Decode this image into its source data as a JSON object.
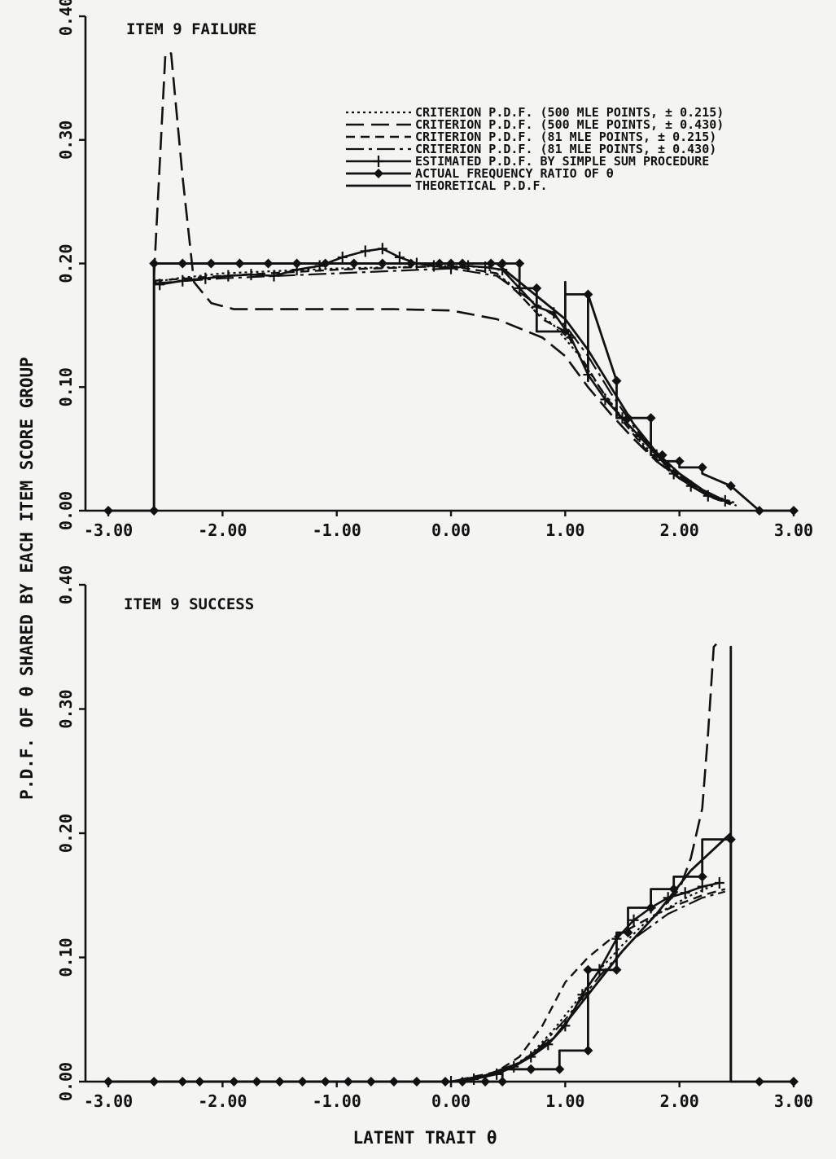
{
  "figure": {
    "ylabel": "P.D.F. OF θ SHARED BY EACH ITEM SCORE GROUP",
    "xlabel": "LATENT TRAIT θ"
  },
  "colors": {
    "ink": "#111111",
    "paper": "#f4f4f2"
  },
  "chart_data": [
    {
      "type": "line",
      "title": "ITEM 9 FAILURE",
      "xlim": [
        -3.2,
        3.0
      ],
      "ylim": [
        0.0,
        0.4
      ],
      "xticks": [
        -3.0,
        -2.0,
        -1.0,
        0.0,
        1.0,
        2.0,
        3.0
      ],
      "xticklabels": [
        "-3.00",
        "-2.00",
        "-1.00",
        "0.00",
        "1.00",
        "2.00",
        "3.00"
      ],
      "yticks": [
        0.0,
        0.1,
        0.2,
        0.3,
        0.4
      ],
      "yticklabels": [
        "0.00",
        "0.10",
        "0.20",
        "0.30",
        "0.40"
      ],
      "grid": false,
      "legend": "top-right",
      "series": [
        {
          "name": "CRITERION P.D.F. (500 MLE POINTS, ± 0.215)",
          "style": "dotted",
          "x": [
            -2.6,
            -2.4,
            -2.2,
            -2.0,
            -1.5,
            -1.0,
            -0.5,
            0.0,
            0.3,
            0.5,
            0.7,
            0.9,
            1.1,
            1.3,
            1.5,
            1.7,
            1.9,
            2.1,
            2.3,
            2.5
          ],
          "y": [
            0.185,
            0.188,
            0.19,
            0.192,
            0.194,
            0.196,
            0.197,
            0.198,
            0.197,
            0.185,
            0.165,
            0.15,
            0.128,
            0.1,
            0.075,
            0.052,
            0.035,
            0.022,
            0.012,
            0.006
          ]
        },
        {
          "name": "CRITERION P.D.F. (500 MLE POINTS, ± 0.430)",
          "style": "long-dash",
          "x": [
            -2.6,
            -2.5,
            -2.45,
            -2.35,
            -2.25,
            -2.1,
            -1.9,
            -1.5,
            -1.0,
            -0.5,
            0.0,
            0.4,
            0.8,
            1.0,
            1.2,
            1.4,
            1.6,
            1.8,
            2.0,
            2.2,
            2.4,
            2.5
          ],
          "y": [
            0.19,
            0.37,
            0.37,
            0.27,
            0.185,
            0.168,
            0.163,
            0.163,
            0.163,
            0.163,
            0.162,
            0.155,
            0.14,
            0.125,
            0.1,
            0.078,
            0.058,
            0.04,
            0.026,
            0.015,
            0.008,
            0.005
          ]
        },
        {
          "name": "CRITERION P.D.F. (81 MLE POINTS, ± 0.215)",
          "style": "dashed",
          "x": [
            -2.6,
            -2.0,
            -1.0,
            0.0,
            0.4,
            0.6,
            0.8,
            1.0,
            1.1,
            1.3,
            1.5,
            1.7,
            1.9,
            2.1,
            2.3,
            2.45
          ],
          "y": [
            0.186,
            0.19,
            0.195,
            0.198,
            0.192,
            0.175,
            0.155,
            0.145,
            0.13,
            0.1,
            0.073,
            0.05,
            0.033,
            0.02,
            0.01,
            0.005
          ]
        },
        {
          "name": "CRITERION P.D.F. (81 MLE POINTS, ± 0.430)",
          "style": "dash-dot",
          "x": [
            -2.6,
            -2.0,
            -1.0,
            0.0,
            0.4,
            0.7,
            0.9,
            1.0,
            1.2,
            1.4,
            1.6,
            1.8,
            2.0,
            2.2,
            2.4,
            2.5
          ],
          "y": [
            0.184,
            0.188,
            0.192,
            0.196,
            0.19,
            0.17,
            0.158,
            0.15,
            0.125,
            0.095,
            0.068,
            0.045,
            0.028,
            0.016,
            0.008,
            0.004
          ]
        },
        {
          "name": "ESTIMATED P.D.F. BY SIMPLE SUM PROCEDURE",
          "style": "solid-plus",
          "x": [
            -2.55,
            -2.35,
            -2.15,
            -1.95,
            -1.75,
            -1.55,
            -1.35,
            -1.15,
            -0.95,
            -0.75,
            -0.6,
            -0.45,
            -0.3,
            -0.15,
            0.0,
            0.15,
            0.3,
            0.45,
            0.6,
            0.75,
            0.9,
            1.05,
            1.2,
            1.35,
            1.5,
            1.65,
            1.8,
            1.95,
            2.1,
            2.25,
            2.4
          ],
          "y": [
            0.183,
            0.186,
            0.188,
            0.19,
            0.191,
            0.19,
            0.195,
            0.198,
            0.205,
            0.21,
            0.212,
            0.205,
            0.2,
            0.198,
            0.196,
            0.198,
            0.197,
            0.195,
            0.18,
            0.165,
            0.16,
            0.14,
            0.11,
            0.09,
            0.075,
            0.06,
            0.045,
            0.03,
            0.02,
            0.012,
            0.008
          ]
        },
        {
          "name": "ACTUAL FREQUENCY RATIO OF θ",
          "style": "step-diamond",
          "x": [
            -3.0,
            -2.6,
            -2.6,
            -2.6,
            -2.35,
            -2.1,
            -1.85,
            -1.6,
            -1.35,
            -1.1,
            -0.85,
            -0.6,
            -0.35,
            -0.1,
            0.0,
            0.1,
            0.35,
            0.45,
            0.45,
            0.6,
            0.6,
            0.75,
            0.75,
            1.0,
            1.0,
            1.0,
            1.2,
            1.2,
            1.2,
            1.45,
            1.45,
            1.55,
            1.55,
            1.75,
            1.75,
            1.85,
            1.85,
            2.0,
            2.0,
            2.2,
            2.2,
            2.45,
            2.7,
            3.0
          ],
          "y": [
            0.0,
            0.0,
            0.2,
            0.2,
            0.2,
            0.2,
            0.2,
            0.2,
            0.2,
            0.2,
            0.2,
            0.2,
            0.2,
            0.2,
            0.2,
            0.2,
            0.2,
            0.2,
            0.2,
            0.2,
            0.18,
            0.18,
            0.145,
            0.145,
            0.185,
            0.175,
            0.175,
            0.105,
            0.175,
            0.105,
            0.075,
            0.075,
            0.075,
            0.075,
            0.045,
            0.045,
            0.04,
            0.04,
            0.035,
            0.035,
            0.03,
            0.02,
            0.0,
            0.0
          ]
        },
        {
          "name": "THEORETICAL P.D.F.",
          "style": "solid",
          "x": [
            -2.6,
            -2.6,
            -2.0,
            -1.0,
            0.0,
            0.4,
            0.6,
            0.8,
            1.0,
            1.2,
            1.4,
            1.6,
            1.8,
            2.0,
            2.2,
            2.4
          ],
          "y": [
            0.0,
            0.2,
            0.2,
            0.2,
            0.2,
            0.2,
            0.185,
            0.17,
            0.155,
            0.13,
            0.1,
            0.07,
            0.047,
            0.03,
            0.017,
            0.008
          ]
        }
      ]
    },
    {
      "type": "line",
      "title": "ITEM 9 SUCCESS",
      "xlim": [
        -3.2,
        3.0
      ],
      "ylim": [
        0.0,
        0.4
      ],
      "xticks": [
        -3.0,
        -2.0,
        -1.0,
        0.0,
        1.0,
        2.0,
        3.0
      ],
      "xticklabels": [
        "-3.00",
        "-2.00",
        "-1.00",
        "0.00",
        "1.00",
        "2.00",
        "3.00"
      ],
      "yticks": [
        0.0,
        0.1,
        0.2,
        0.3,
        0.4
      ],
      "yticklabels": [
        "0.00",
        "0.10",
        "0.20",
        "0.30",
        "0.40"
      ],
      "grid": false,
      "series": [
        {
          "style": "dotted",
          "x": [
            -3.0,
            0.0,
            0.3,
            0.5,
            0.7,
            0.9,
            1.1,
            1.3,
            1.5,
            1.7,
            1.9,
            2.1,
            2.3
          ],
          "y": [
            0.0,
            0.0,
            0.004,
            0.01,
            0.022,
            0.042,
            0.065,
            0.09,
            0.11,
            0.128,
            0.14,
            0.15,
            0.158
          ]
        },
        {
          "style": "long-dash",
          "x": [
            -3.0,
            0.0,
            0.3,
            0.6,
            0.9,
            1.2,
            1.5,
            1.8,
            2.0,
            2.1,
            2.2,
            2.25,
            2.3,
            2.35
          ],
          "y": [
            0.0,
            0.0,
            0.004,
            0.015,
            0.035,
            0.07,
            0.105,
            0.135,
            0.155,
            0.18,
            0.22,
            0.28,
            0.35,
            0.355
          ]
        },
        {
          "style": "dashed",
          "x": [
            -3.0,
            0.0,
            0.4,
            0.6,
            0.8,
            1.0,
            1.2,
            1.4,
            1.6,
            1.8,
            2.0,
            2.2,
            2.4
          ],
          "y": [
            0.0,
            0.0,
            0.008,
            0.02,
            0.045,
            0.08,
            0.1,
            0.115,
            0.125,
            0.135,
            0.143,
            0.15,
            0.155
          ]
        },
        {
          "style": "dash-dot",
          "x": [
            -3.0,
            0.0,
            0.4,
            0.7,
            1.0,
            1.3,
            1.6,
            1.9,
            2.2,
            2.4
          ],
          "y": [
            0.0,
            0.0,
            0.006,
            0.02,
            0.05,
            0.085,
            0.115,
            0.135,
            0.148,
            0.153
          ]
        },
        {
          "style": "solid-plus",
          "x": [
            0.0,
            0.2,
            0.4,
            0.55,
            0.7,
            0.85,
            1.0,
            1.15,
            1.3,
            1.45,
            1.6,
            1.75,
            1.9,
            2.05,
            2.2,
            2.35
          ],
          "y": [
            0.0,
            0.002,
            0.006,
            0.012,
            0.02,
            0.03,
            0.045,
            0.07,
            0.09,
            0.115,
            0.13,
            0.14,
            0.148,
            0.152,
            0.157,
            0.16
          ]
        },
        {
          "style": "step-diamond",
          "x": [
            -3.0,
            -2.6,
            -2.35,
            -2.2,
            -1.9,
            -1.7,
            -1.5,
            -1.3,
            -1.1,
            -0.9,
            -0.7,
            -0.5,
            -0.3,
            -0.05,
            0.1,
            0.3,
            0.45,
            0.45,
            0.7,
            0.7,
            0.95,
            0.95,
            1.2,
            1.2,
            1.2,
            1.45,
            1.45,
            1.55,
            1.55,
            1.75,
            1.75,
            1.95,
            1.95,
            2.2,
            2.2,
            2.45,
            2.45,
            2.7,
            3.0
          ],
          "y": [
            0.0,
            0.0,
            0.0,
            0.0,
            0.0,
            0.0,
            0.0,
            0.0,
            0.0,
            0.0,
            0.0,
            0.0,
            0.0,
            0.0,
            0.0,
            0.0,
            0.0,
            0.01,
            0.01,
            0.01,
            0.01,
            0.025,
            0.025,
            0.09,
            0.09,
            0.09,
            0.12,
            0.12,
            0.14,
            0.14,
            0.155,
            0.155,
            0.165,
            0.165,
            0.195,
            0.195,
            0.0,
            0.0,
            0.0
          ]
        },
        {
          "style": "solid",
          "x": [
            -3.0,
            0.0,
            0.3,
            0.6,
            0.9,
            1.2,
            1.5,
            1.8,
            2.1,
            2.45,
            2.45,
            2.45
          ],
          "y": [
            0.0,
            0.0,
            0.005,
            0.015,
            0.035,
            0.07,
            0.105,
            0.135,
            0.17,
            0.2,
            0.35,
            0.0
          ]
        }
      ]
    }
  ]
}
